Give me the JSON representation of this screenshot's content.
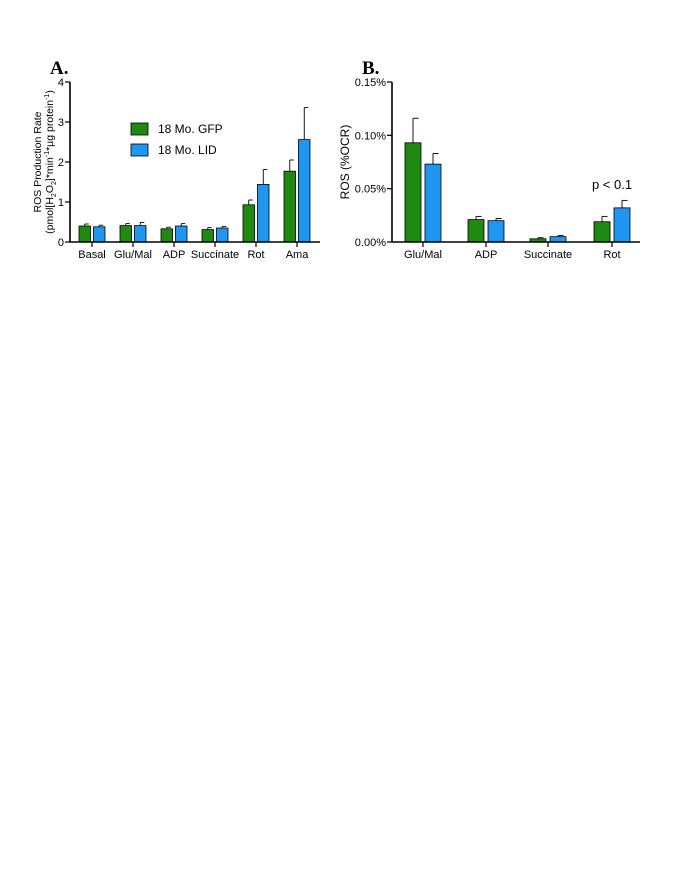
{
  "colors": {
    "gfp": "#1f8a12",
    "lid": "#1f97f0"
  },
  "legend": [
    {
      "label": "18 Mo. GFP"
    },
    {
      "label": "18 Mo. LID"
    }
  ],
  "chart_data": [
    {
      "type": "bar",
      "panel": "A.",
      "ylabel_line1": "ROS Production Rate",
      "ylabel_line2_parts": [
        "(pmol[H",
        "2",
        "O",
        "2",
        "]*min",
        "-1",
        "*µg protein",
        "-1",
        ")"
      ],
      "ylim": [
        0,
        4
      ],
      "yticks": [
        "0",
        "1",
        "2",
        "3",
        "4"
      ],
      "categories": [
        "Basal",
        "Glu/Mal",
        "ADP",
        "Succinate",
        "Rot",
        "Ama"
      ],
      "series": [
        {
          "name": "18 Mo. GFP",
          "values": [
            0.4,
            0.41,
            0.33,
            0.31,
            0.93,
            1.77
          ],
          "errors": [
            0.05,
            0.05,
            0.04,
            0.05,
            0.12,
            0.28
          ]
        },
        {
          "name": "18 Mo. LID",
          "values": [
            0.38,
            0.41,
            0.4,
            0.35,
            1.44,
            2.56
          ],
          "errors": [
            0.04,
            0.08,
            0.06,
            0.04,
            0.37,
            0.8
          ]
        }
      ]
    },
    {
      "type": "bar",
      "panel": "B.",
      "ylabel": "ROS (%OCR)",
      "ylim": [
        0,
        0.15
      ],
      "yticks": [
        "0.00%",
        "0.05%",
        "0.10%",
        "0.15%"
      ],
      "categories": [
        "Glu/Mal",
        "ADP",
        "Succinate",
        "Rot"
      ],
      "annotation": "p < 0.1",
      "series": [
        {
          "name": "18 Mo. GFP",
          "values": [
            0.093,
            0.021,
            0.003,
            0.019
          ],
          "errors": [
            0.023,
            0.003,
            0.001,
            0.005
          ]
        },
        {
          "name": "18 Mo. LID",
          "values": [
            0.073,
            0.02,
            0.005,
            0.032
          ],
          "errors": [
            0.01,
            0.002,
            0.001,
            0.007
          ]
        }
      ]
    }
  ]
}
